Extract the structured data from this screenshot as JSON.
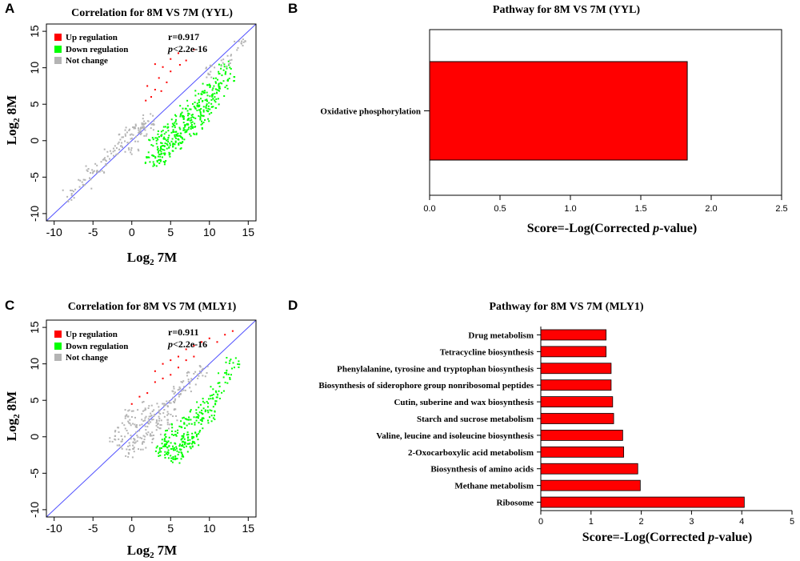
{
  "colors": {
    "up": "#ff0000",
    "down": "#00ff00",
    "none": "#b4b4b4",
    "diag": "#5050ff",
    "bar": "#ff0000"
  },
  "chart_data": [
    {
      "panel": "A",
      "type": "scatter",
      "title": "Correlation for 8M VS 7M (YYL)",
      "xlabel_base": "Log",
      "xlabel_sub": "2",
      "xlabel_rest": "7M",
      "ylabel_base": "Log",
      "ylabel_sub": "2",
      "ylabel_rest": "8M",
      "xlim": [
        -11,
        16
      ],
      "ylim": [
        -11,
        16
      ],
      "xticks": [
        "-10",
        "-5",
        "0",
        "5",
        "10",
        "15"
      ],
      "yticks": [
        "-10",
        "-5",
        "0",
        "5",
        "10",
        "15"
      ],
      "legend": [
        "Up regulation",
        "Down regulation",
        "Not change"
      ],
      "stat_r": "r=0.917",
      "stat_p_italic": "p",
      "stat_p_rest": "<2.2e-16",
      "series": [
        {
          "name": "Up regulation",
          "points": [
            [
              3,
              10.5
            ],
            [
              4,
              10.1
            ],
            [
              5,
              11.2
            ],
            [
              6,
              12
            ],
            [
              4.5,
              8
            ],
            [
              3.5,
              8.6
            ],
            [
              2,
              7.5
            ],
            [
              3,
              7
            ],
            [
              5,
              9.5
            ],
            [
              7,
              11
            ],
            [
              8,
              12.5
            ],
            [
              2.5,
              6
            ],
            [
              3.8,
              6.8
            ],
            [
              1.8,
              5.5
            ],
            [
              6.2,
              10.4
            ]
          ]
        },
        {
          "name": "Down regulation",
          "points": [
            [
              3,
              0
            ],
            [
              4,
              1
            ],
            [
              5,
              2
            ],
            [
              6,
              3
            ],
            [
              7,
              4
            ],
            [
              8,
              5
            ],
            [
              9,
              6
            ],
            [
              10,
              7
            ],
            [
              11,
              8
            ],
            [
              12,
              10
            ],
            [
              3,
              -2
            ],
            [
              4,
              -1
            ],
            [
              5,
              0
            ],
            [
              6,
              1
            ],
            [
              7,
              2
            ],
            [
              8,
              3
            ],
            [
              9,
              4
            ],
            [
              10,
              5
            ],
            [
              2.5,
              -3
            ],
            [
              3.5,
              -2.5
            ],
            [
              4.5,
              -1.5
            ],
            [
              5.5,
              -0.5
            ],
            [
              6.5,
              0.5
            ],
            [
              7.5,
              1.5
            ],
            [
              8.5,
              2.5
            ],
            [
              9.5,
              3.5
            ],
            [
              10.5,
              5.5
            ],
            [
              11.5,
              7
            ],
            [
              12.5,
              9
            ]
          ]
        },
        {
          "name": "Not change",
          "points": [
            [
              -5,
              -4
            ],
            [
              -3,
              -2
            ],
            [
              -1,
              0
            ],
            [
              0,
              1
            ],
            [
              1,
              2
            ],
            [
              2,
              3
            ],
            [
              -2,
              -1
            ],
            [
              0,
              -1
            ],
            [
              1,
              1
            ],
            [
              2,
              1.5
            ],
            [
              -4,
              -3.5
            ],
            [
              -6,
              -6
            ],
            [
              -8,
              -7.5
            ],
            [
              14,
              13
            ],
            [
              12,
              11
            ],
            [
              10,
              9.5
            ]
          ]
        }
      ]
    },
    {
      "panel": "B",
      "type": "bar",
      "title": "Pathway for 8M VS 7M (YYL)",
      "xlabel_pre": "Score=-Log(Corrected ",
      "xlabel_italic": "p",
      "xlabel_post": "-value)",
      "xlim": [
        0,
        2.5
      ],
      "xticks": [
        "0.0",
        "0.5",
        "1.0",
        "1.5",
        "2.0",
        "2.5"
      ],
      "categories": [
        "Oxidative phosphorylation"
      ],
      "values": [
        1.83
      ]
    },
    {
      "panel": "C",
      "type": "scatter",
      "title": "Correlation for 8M VS 7M (MLY1)",
      "xlabel_base": "Log",
      "xlabel_sub": "2",
      "xlabel_rest": "7M",
      "ylabel_base": "Log",
      "ylabel_sub": "2",
      "ylabel_rest": "8M",
      "xlim": [
        -11,
        16
      ],
      "ylim": [
        -11,
        16
      ],
      "xticks": [
        "-10",
        "-5",
        "0",
        "5",
        "10",
        "15"
      ],
      "yticks": [
        "-10",
        "-5",
        "0",
        "5",
        "10",
        "15"
      ],
      "legend": [
        "Up regulation",
        "Down regulation",
        "Not change"
      ],
      "stat_r": "r=0.911",
      "stat_p_italic": "p",
      "stat_p_rest": "<2.2e-16",
      "series": [
        {
          "name": "Up regulation",
          "points": [
            [
              3,
              9
            ],
            [
              4,
              10
            ],
            [
              5,
              10.5
            ],
            [
              6,
              11
            ],
            [
              7,
              12
            ],
            [
              8,
              12.5
            ],
            [
              9,
              13
            ],
            [
              10,
              13.5
            ],
            [
              11,
              13
            ],
            [
              12,
              14
            ],
            [
              13,
              14.5
            ],
            [
              4,
              8
            ],
            [
              5,
              8.5
            ],
            [
              6,
              9.5
            ],
            [
              7,
              10.5
            ],
            [
              8,
              11
            ],
            [
              3,
              7.5
            ],
            [
              2,
              6
            ],
            [
              0,
              4.5
            ],
            [
              1,
              5.5
            ]
          ]
        },
        {
          "name": "Down regulation",
          "points": [
            [
              4,
              -1
            ],
            [
              5,
              0
            ],
            [
              6,
              1
            ],
            [
              7,
              2
            ],
            [
              8,
              3
            ],
            [
              9,
              4
            ],
            [
              10,
              5
            ],
            [
              11,
              6
            ],
            [
              12,
              8
            ],
            [
              13,
              10
            ],
            [
              4,
              -2
            ],
            [
              5,
              -1.5
            ],
            [
              6,
              -1
            ],
            [
              7,
              -0.5
            ],
            [
              8,
              0.5
            ],
            [
              9,
              2
            ],
            [
              10,
              3
            ],
            [
              5,
              -2.5
            ],
            [
              6,
              -3
            ],
            [
              7,
              -1.5
            ],
            [
              8,
              -0.5
            ]
          ]
        },
        {
          "name": "Not change",
          "points": [
            [
              0,
              0
            ],
            [
              1,
              1
            ],
            [
              2,
              2
            ],
            [
              3,
              3
            ],
            [
              4,
              4
            ],
            [
              5,
              5
            ],
            [
              6,
              6
            ],
            [
              7,
              7
            ],
            [
              8,
              8
            ],
            [
              9,
              9
            ],
            [
              -1,
              -1
            ],
            [
              0,
              -2
            ],
            [
              1,
              -1
            ],
            [
              2,
              0
            ],
            [
              -2,
              0
            ],
            [
              3,
              1
            ],
            [
              4,
              2
            ],
            [
              5,
              3
            ],
            [
              -1,
              2
            ],
            [
              0,
              3
            ],
            [
              2,
              4
            ]
          ]
        }
      ]
    },
    {
      "panel": "D",
      "type": "bar",
      "title": "Pathway for 8M VS 7M (MLY1)",
      "xlabel_pre": "Score=-Log(Corrected ",
      "xlabel_italic": "p",
      "xlabel_post": "-value)",
      "xlim": [
        0,
        5
      ],
      "xticks": [
        "0",
        "1",
        "2",
        "3",
        "4",
        "5"
      ],
      "categories": [
        "Drug metabolism",
        "Tetracycline biosynthesis",
        "Phenylalanine, tyrosine and tryptophan biosynthesis",
        "Biosynthesis of siderophore group nonribosomal peptides",
        "Cutin, suberine and wax biosynthesis",
        "Starch and sucrose metabolism",
        "Valine, leucine and isoleucine biosynthesis",
        "2-Oxocarboxylic acid metabolism",
        "Biosynthesis of amino acids",
        "Methane metabolism",
        "Ribosome"
      ],
      "values": [
        1.3,
        1.3,
        1.4,
        1.4,
        1.43,
        1.45,
        1.63,
        1.65,
        1.93,
        1.98,
        4.05
      ]
    }
  ]
}
